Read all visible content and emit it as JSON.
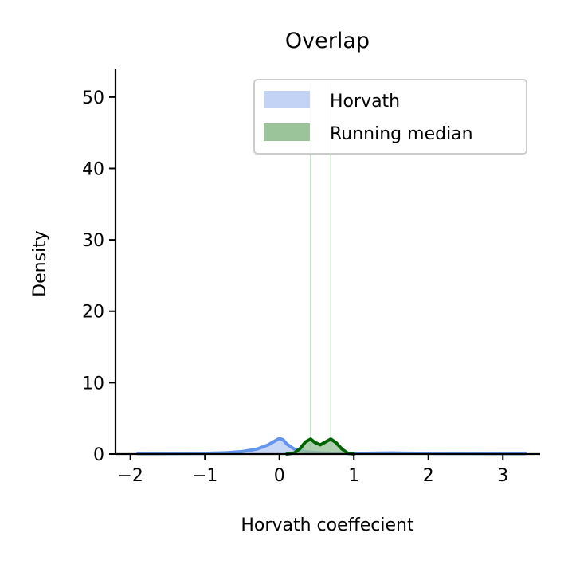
{
  "chart_data": {
    "type": "area",
    "title": "Overlap",
    "xlabel": "Horvath coeffecient",
    "ylabel": "Density",
    "xlim": [
      -2.2,
      3.5
    ],
    "ylim": [
      0,
      54
    ],
    "xticks": [
      -2,
      -1,
      0,
      1,
      2,
      3
    ],
    "xtick_labels": [
      "−2",
      "−1",
      "0",
      "1",
      "2",
      "3"
    ],
    "yticks": [
      0,
      10,
      20,
      30,
      40,
      50
    ],
    "ytick_labels": [
      "0",
      "10",
      "20",
      "30",
      "40",
      "50"
    ],
    "grid": false,
    "legend_position": "top-right",
    "series": [
      {
        "name": "Horvath",
        "color": "#6495ED",
        "fill_color": "#C3D3F5",
        "x": [
          -1.9,
          -1.5,
          -1.0,
          -0.7,
          -0.5,
          -0.3,
          -0.15,
          -0.05,
          0.0,
          0.05,
          0.1,
          0.2,
          0.35,
          0.5,
          0.7,
          1.0,
          1.5,
          2.0,
          2.5,
          3.0,
          3.3
        ],
        "y": [
          0.05,
          0.07,
          0.1,
          0.2,
          0.35,
          0.7,
          1.3,
          1.9,
          2.2,
          2.0,
          1.4,
          0.7,
          0.35,
          0.2,
          0.12,
          0.1,
          0.15,
          0.1,
          0.08,
          0.06,
          0.05
        ]
      },
      {
        "name": "Running median",
        "color": "#006400",
        "fill_color": "#9BC49B",
        "x": [
          0.1,
          0.2,
          0.28,
          0.35,
          0.42,
          0.48,
          0.55,
          0.62,
          0.69,
          0.76,
          0.84,
          0.92,
          1.0
        ],
        "y": [
          0.0,
          0.15,
          0.8,
          1.7,
          2.1,
          1.6,
          1.3,
          1.7,
          2.1,
          1.6,
          0.7,
          0.1,
          0.0
        ],
        "vlines": [
          0.42,
          0.69
        ]
      }
    ]
  }
}
